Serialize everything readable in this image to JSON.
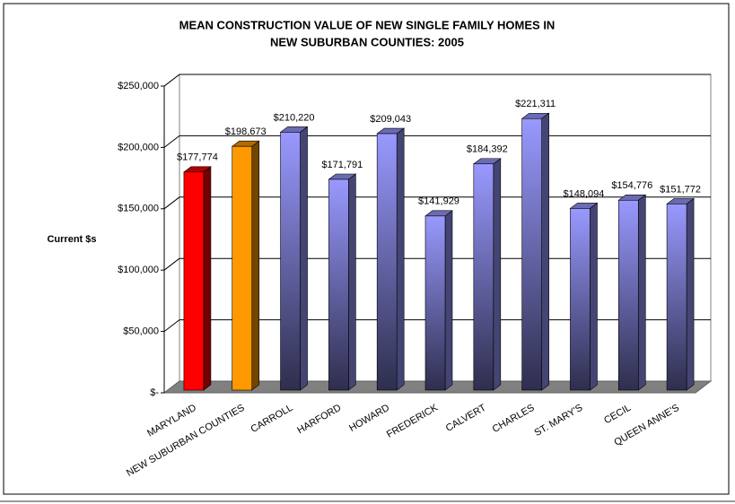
{
  "chart_data": {
    "type": "bar3d",
    "title": [
      "MEAN CONSTRUCTION VALUE OF NEW SINGLE FAMILY HOMES IN",
      "NEW SUBURBAN COUNTIES:  2005"
    ],
    "y_label": "Current $s",
    "categories": [
      "MARYLAND",
      "NEW SUBURBAN COUNTIES",
      "CARROLL",
      "HARFORD",
      "HOWARD",
      "FREDERICK",
      "CALVERT",
      "CHARLES",
      "ST. MARY'S",
      "CECIL",
      "QUEEN ANNE'S"
    ],
    "values": [
      177774,
      198673,
      210220,
      171791,
      209043,
      141929,
      184392,
      221311,
      148094,
      154776,
      151772
    ],
    "value_labels": [
      "$177,774",
      "$198,673",
      "$210,220",
      "$171,791",
      "$209,043",
      "$141,929",
      "$184,392",
      "$221,311",
      "$148,094",
      "$154,776",
      "$151,772"
    ],
    "colors": [
      "#ff0000",
      "#ff9900",
      "#9999ff",
      "#9999ff",
      "#9999ff",
      "#9999ff",
      "#9999ff",
      "#9999ff",
      "#9999ff",
      "#9999ff",
      "#9999ff"
    ],
    "ylim": [
      0,
      250000
    ],
    "yticks": [
      {
        "value": 0,
        "label": "$-"
      },
      {
        "value": 50000,
        "label": "$50,000"
      },
      {
        "value": 100000,
        "label": "$100,000"
      },
      {
        "value": 150000,
        "label": "$150,000"
      },
      {
        "value": 200000,
        "label": "$200,000"
      },
      {
        "value": 250000,
        "label": "$250,000"
      }
    ],
    "grid": true
  }
}
